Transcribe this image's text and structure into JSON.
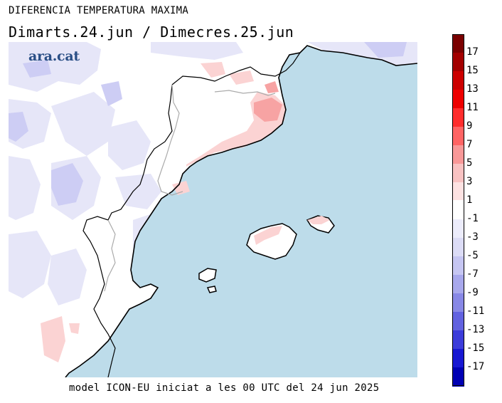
{
  "title": "DIFERENCIA TEMPERATURA MAXIMA",
  "subtitle": "Dimarts.24.jun / Dimecres.25.jun",
  "footer": "model ICON-EU iniciat a les 00 UTC del 24 jun 2025",
  "logo": "ara.cat",
  "legend": {
    "levels": [
      {
        "label": "17",
        "color": "#7a0000"
      },
      {
        "label": "15",
        "color": "#a30000"
      },
      {
        "label": "13",
        "color": "#cc0000"
      },
      {
        "label": "11",
        "color": "#ee0000"
      },
      {
        "label": "9",
        "color": "#ff2d2d"
      },
      {
        "label": "7",
        "color": "#ff6464"
      },
      {
        "label": "5",
        "color": "#f89898"
      },
      {
        "label": "3",
        "color": "#f8c2c2"
      },
      {
        "label": "1",
        "color": "#fde2e2"
      },
      {
        "label": "-1",
        "color": "#ffffff"
      },
      {
        "label": "-3",
        "color": "#ececfb"
      },
      {
        "label": "-5",
        "color": "#dcdcf6"
      },
      {
        "label": "-7",
        "color": "#c6c6f2"
      },
      {
        "label": "-9",
        "color": "#a8a8ec"
      },
      {
        "label": "-11",
        "color": "#8888e6"
      },
      {
        "label": "-13",
        "color": "#6262e0"
      },
      {
        "label": "-15",
        "color": "#3c3cda"
      },
      {
        "label": "-17",
        "color": "#1818d2"
      },
      {
        "label": "",
        "color": "#0000b4"
      }
    ]
  },
  "map": {
    "sea_color": "#bddcea",
    "land_color": "#ffffff",
    "coast_color": "#000000",
    "border_color": "#aaaaaa"
  }
}
